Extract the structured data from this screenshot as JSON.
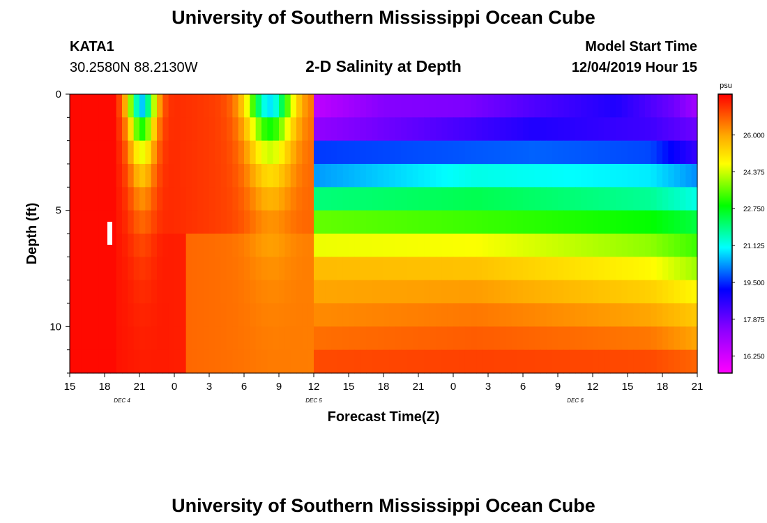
{
  "page": {
    "title": "University of Southern Mississippi Ocean Cube",
    "footer_title": "University of Southern Mississippi Ocean Cube"
  },
  "station": {
    "id": "KATA1",
    "coords": "30.2580N 88.2130W"
  },
  "model": {
    "start_label": "Model Start Time",
    "start_value": "12/04/2019 Hour 15"
  },
  "chart_data": {
    "type": "heatmap",
    "title": "2-D Salinity at Depth",
    "xlabel": "Forecast Time(Z)",
    "ylabel": "Depth (ft)",
    "x_range_hours": [
      0,
      54
    ],
    "x_ticks": [
      "15",
      "18",
      "21",
      "0",
      "3",
      "6",
      "9",
      "12",
      "15",
      "18",
      "21",
      "0",
      "3",
      "6",
      "9",
      "12",
      "15",
      "18",
      "21"
    ],
    "date_labels": [
      {
        "text": "DEC 4",
        "hour": 4.5
      },
      {
        "text": "DEC 5",
        "hour": 21
      },
      {
        "text": "DEC 6",
        "hour": 43.5
      }
    ],
    "y_range_ft": [
      0,
      12
    ],
    "y_ticks": [
      0,
      5,
      10
    ],
    "units": "psu",
    "colorbar": {
      "label": "psu",
      "ticks": [
        "26.000",
        "24.375",
        "22.750",
        "21.125",
        "19.500",
        "17.875",
        "16.250"
      ],
      "min": 15.5,
      "max": 27.8
    },
    "layer_depths_ft": [
      0.5,
      1.5,
      2.5,
      3.5,
      4.5,
      5.5,
      6.5,
      7.5,
      8.5,
      9.5,
      10.5,
      11.5
    ],
    "data_gap": {
      "hour": 3.5,
      "depth_top_ft": 5.5,
      "depth_bottom_ft": 6.5
    }
  }
}
